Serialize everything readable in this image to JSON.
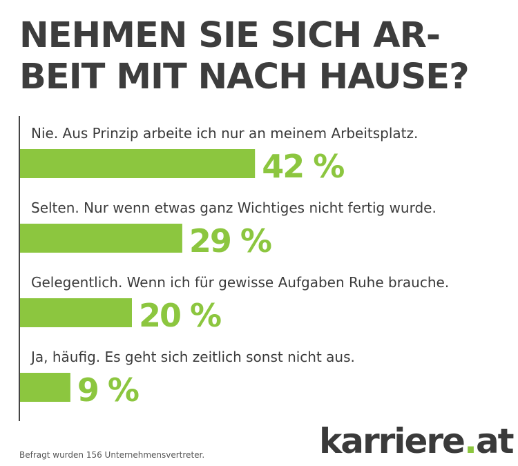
{
  "title_lines": [
    "NEHMEN SIE SICH AR-",
    "BEIT MIT NACH HAUSE?"
  ],
  "chart_data": {
    "type": "bar",
    "orientation": "horizontal",
    "categories": [
      "Nie. Aus Prinzip arbeite ich nur an meinem Arbeitsplatz.",
      "Selten. Nur wenn etwas ganz Wichtiges nicht fertig wurde.",
      "Gelegentlich. Wenn ich für gewisse Aufgaben Ruhe brauche.",
      "Ja, häufig. Es geht sich zeitlich sonst nicht aus."
    ],
    "values": [
      42,
      29,
      20,
      9
    ],
    "value_labels": [
      "42 %",
      "29 %",
      "20 %",
      "9 %"
    ],
    "unit": "%",
    "xlim": [
      0,
      100
    ],
    "grid": false,
    "legend": "none"
  },
  "colors": {
    "bar": "#8cc63f",
    "value_label": "#8cc63f",
    "text": "#3a3a3a"
  },
  "footnote": "Befragt wurden 156 Unternehmensvertreter.",
  "logo": {
    "brand": "karriere",
    "dot": ".",
    "suffix": "at"
  }
}
